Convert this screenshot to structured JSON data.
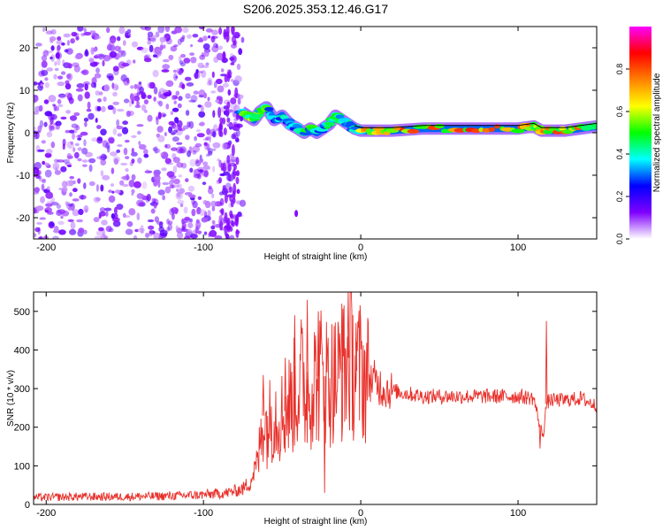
{
  "chart_data": [
    {
      "type": "heatmap",
      "title": "S206.2025.353.12.46.G17",
      "xlabel": "Height of straight line (km)",
      "ylabel": "Frequency (Hz)",
      "xlim": [
        -208,
        150
      ],
      "ylim": [
        -25,
        25
      ],
      "xticks": [
        -200,
        -100,
        0,
        100
      ],
      "yticks": [
        -20,
        -10,
        0,
        10,
        20
      ],
      "xtick_labels": [
        "-200",
        "-100",
        "0",
        "100"
      ],
      "ytick_labels": [
        "-20",
        "-10",
        "0",
        "10",
        "20"
      ],
      "noise_region_x": [
        -208,
        -75
      ],
      "colorbar": {
        "label": "Normalized spectral amplitude",
        "range": [
          0,
          1
        ],
        "ticks": [
          0.0,
          0.2,
          0.4,
          0.6,
          0.8
        ],
        "tick_labels": [
          "0.0",
          "0.2",
          "0.4",
          "0.6",
          "0.8"
        ],
        "colors": [
          "#ffffff",
          "#7f00ff",
          "#0000ff",
          "#00ffff",
          "#00ff00",
          "#ffff00",
          "#ff8000",
          "#ff0000",
          "#ff00ff"
        ]
      },
      "ridge": {
        "x": [
          -76,
          -72,
          -68,
          -64,
          -60,
          -55,
          -50,
          -45,
          -40,
          -36,
          -32,
          -28,
          -24,
          -20,
          -16,
          -12,
          -8,
          -4,
          0,
          10,
          20,
          40,
          60,
          80,
          100,
          110,
          115,
          120,
          130,
          140,
          150
        ],
        "y": [
          5,
          4,
          3,
          5,
          6,
          3,
          4,
          2,
          1,
          0,
          1,
          0,
          1,
          2,
          4,
          3,
          2,
          1,
          0.5,
          0.5,
          0.5,
          1,
          1,
          1,
          1,
          1.5,
          0.5,
          0.5,
          0.5,
          1,
          1.5
        ],
        "amplitude": [
          0.45,
          0.5,
          0.55,
          0.55,
          0.5,
          0.35,
          0.4,
          0.3,
          0.35,
          0.4,
          0.45,
          0.4,
          0.35,
          0.45,
          0.4,
          0.45,
          0.4,
          0.35,
          0.6,
          0.75,
          0.7,
          0.8,
          0.7,
          0.75,
          0.7,
          0.6,
          0.65,
          0.8,
          0.75,
          0.7,
          0.6
        ]
      }
    },
    {
      "type": "line",
      "title": "",
      "xlabel": "Height of straight line (km)",
      "ylabel": "SNR (10 * v/v)",
      "xlim": [
        -208,
        150
      ],
      "ylim": [
        0,
        550
      ],
      "xticks": [
        -200,
        -100,
        0,
        100
      ],
      "yticks": [
        0,
        100,
        200,
        300,
        400,
        500
      ],
      "xtick_labels": [
        "-200",
        "-100",
        "0",
        "100"
      ],
      "ytick_labels": [
        "0",
        "100",
        "200",
        "300",
        "400",
        "500"
      ],
      "line_color": "#e8302a",
      "series": [
        {
          "name": "SNR",
          "x": [
            -208,
            -180,
            -150,
            -120,
            -100,
            -85,
            -75,
            -70,
            -65,
            -62,
            -60,
            -55,
            -50,
            -45,
            -40,
            -37,
            -35,
            -30,
            -25,
            -20,
            -15,
            -10,
            -8,
            -5,
            -2,
            0,
            3,
            8,
            15,
            25,
            40,
            60,
            80,
            100,
            110,
            114,
            116,
            118,
            120,
            130,
            140,
            150
          ],
          "y": [
            18,
            20,
            20,
            22,
            25,
            30,
            40,
            60,
            120,
            230,
            200,
            240,
            230,
            260,
            300,
            330,
            280,
            320,
            340,
            320,
            330,
            350,
            380,
            360,
            340,
            350,
            330,
            320,
            300,
            290,
            280,
            280,
            280,
            280,
            275,
            200,
            180,
            260,
            270,
            270,
            275,
            255
          ],
          "spikes": [
            {
              "x": -62,
              "y": 335
            },
            {
              "x": -48,
              "y": 380
            },
            {
              "x": -42,
              "y": 490
            },
            {
              "x": -34,
              "y": 530
            },
            {
              "x": -27,
              "y": 500
            },
            {
              "x": -23,
              "y": 30
            },
            {
              "x": -12,
              "y": 520
            },
            {
              "x": -8,
              "y": 550
            },
            {
              "x": -3,
              "y": 470
            },
            {
              "x": 114,
              "y": 145
            },
            {
              "x": 118,
              "y": 475
            }
          ]
        }
      ]
    }
  ]
}
